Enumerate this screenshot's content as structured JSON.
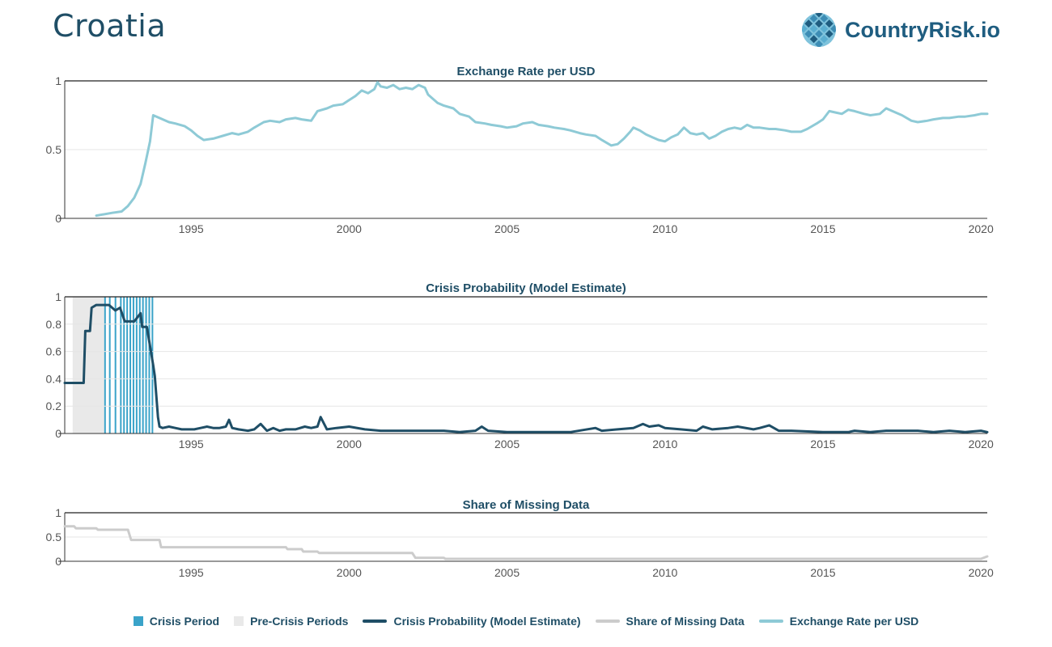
{
  "page": {
    "title": "Croatia"
  },
  "brand": {
    "name": "CountryRisk.io",
    "logo_icon": "globe-grid-icon"
  },
  "colors": {
    "exchange": "#8ecad6",
    "crisis_prob": "#1f4e66",
    "missing": "#cccccc",
    "crisis_period": "#3aa3c9",
    "pre_crisis": "#e9e9e9",
    "title_text": "#1f4e66"
  },
  "legend": [
    {
      "label": "Crisis Period",
      "kind": "box",
      "color": "#3aa3c9"
    },
    {
      "label": "Pre-Crisis Periods",
      "kind": "box",
      "color": "#e9e9e9"
    },
    {
      "label": "Crisis Probability (Model Estimate)",
      "kind": "line",
      "color": "#1f4e66"
    },
    {
      "label": "Share of Missing Data",
      "kind": "line",
      "color": "#cccccc"
    },
    {
      "label": "Exchange Rate per USD",
      "kind": "line",
      "color": "#8ecad6"
    }
  ],
  "chart_data": [
    {
      "type": "line",
      "title": "Exchange Rate per USD",
      "xlim": [
        1991.0,
        2020.2
      ],
      "ylim": [
        0,
        1
      ],
      "yticks": [
        "0",
        "0.5",
        "1"
      ],
      "xticks": [
        "1995",
        "2000",
        "2005",
        "2010",
        "2015",
        "2020"
      ],
      "grid": true,
      "series": [
        {
          "name": "Exchange Rate per USD",
          "x": [
            1992.0,
            1992.5,
            1992.8,
            1993.0,
            1993.2,
            1993.4,
            1993.55,
            1993.7,
            1993.8,
            1994.0,
            1994.3,
            1994.5,
            1994.8,
            1995.0,
            1995.2,
            1995.4,
            1995.7,
            1996.0,
            1996.3,
            1996.5,
            1996.8,
            1997.0,
            1997.3,
            1997.5,
            1997.8,
            1998.0,
            1998.3,
            1998.5,
            1998.8,
            1999.0,
            1999.3,
            1999.5,
            1999.8,
            2000.0,
            2000.2,
            2000.4,
            2000.6,
            2000.8,
            2000.9,
            2001.0,
            2001.2,
            2001.4,
            2001.6,
            2001.8,
            2002.0,
            2002.2,
            2002.4,
            2002.5,
            2002.8,
            2003.0,
            2003.3,
            2003.5,
            2003.8,
            2004.0,
            2004.3,
            2004.5,
            2004.8,
            2005.0,
            2005.3,
            2005.5,
            2005.8,
            2006.0,
            2006.3,
            2006.5,
            2006.8,
            2007.0,
            2007.3,
            2007.5,
            2007.8,
            2008.0,
            2008.3,
            2008.5,
            2008.7,
            2008.9,
            2009.0,
            2009.2,
            2009.4,
            2009.6,
            2009.8,
            2010.0,
            2010.2,
            2010.4,
            2010.6,
            2010.8,
            2011.0,
            2011.2,
            2011.4,
            2011.6,
            2011.8,
            2012.0,
            2012.2,
            2012.4,
            2012.6,
            2012.8,
            2013.0,
            2013.3,
            2013.5,
            2013.8,
            2014.0,
            2014.3,
            2014.5,
            2014.8,
            2015.0,
            2015.2,
            2015.4,
            2015.6,
            2015.8,
            2016.0,
            2016.3,
            2016.5,
            2016.8,
            2017.0,
            2017.3,
            2017.5,
            2017.8,
            2018.0,
            2018.3,
            2018.5,
            2018.8,
            2019.0,
            2019.3,
            2019.5,
            2019.8,
            2020.0,
            2020.2
          ],
          "y": [
            0.02,
            0.04,
            0.05,
            0.09,
            0.15,
            0.25,
            0.4,
            0.56,
            0.75,
            0.73,
            0.7,
            0.69,
            0.67,
            0.64,
            0.6,
            0.57,
            0.58,
            0.6,
            0.62,
            0.61,
            0.63,
            0.66,
            0.7,
            0.71,
            0.7,
            0.72,
            0.73,
            0.72,
            0.71,
            0.78,
            0.8,
            0.82,
            0.83,
            0.86,
            0.89,
            0.93,
            0.91,
            0.94,
            0.99,
            0.96,
            0.95,
            0.97,
            0.94,
            0.95,
            0.94,
            0.97,
            0.95,
            0.9,
            0.84,
            0.82,
            0.8,
            0.76,
            0.74,
            0.7,
            0.69,
            0.68,
            0.67,
            0.66,
            0.67,
            0.69,
            0.7,
            0.68,
            0.67,
            0.66,
            0.65,
            0.64,
            0.62,
            0.61,
            0.6,
            0.57,
            0.53,
            0.54,
            0.58,
            0.63,
            0.66,
            0.64,
            0.61,
            0.59,
            0.57,
            0.56,
            0.59,
            0.61,
            0.66,
            0.62,
            0.61,
            0.62,
            0.58,
            0.6,
            0.63,
            0.65,
            0.66,
            0.65,
            0.68,
            0.66,
            0.66,
            0.65,
            0.65,
            0.64,
            0.63,
            0.63,
            0.65,
            0.69,
            0.72,
            0.78,
            0.77,
            0.76,
            0.79,
            0.78,
            0.76,
            0.75,
            0.76,
            0.8,
            0.77,
            0.75,
            0.71,
            0.7,
            0.71,
            0.72,
            0.73,
            0.73,
            0.74,
            0.74,
            0.75,
            0.76,
            0.76
          ]
        }
      ]
    },
    {
      "type": "line",
      "title": "Crisis Probability (Model Estimate)",
      "xlim": [
        1991.0,
        2020.2
      ],
      "ylim": [
        0,
        1
      ],
      "yticks": [
        "0",
        "0.2",
        "0.4",
        "0.6",
        "0.8",
        "1"
      ],
      "xticks": [
        "1995",
        "2000",
        "2005",
        "2010",
        "2015",
        "2020"
      ],
      "grid": true,
      "pre_crisis_periods": [
        [
          1991.25,
          1992.25
        ]
      ],
      "crisis_periods": [
        [
          1992.25,
          1992.3
        ],
        [
          1992.4,
          1992.45
        ],
        [
          1992.58,
          1992.62
        ],
        [
          1992.75,
          1992.8
        ],
        [
          1992.85,
          1992.9
        ],
        [
          1992.95,
          1993.0
        ],
        [
          1993.05,
          1993.1
        ],
        [
          1993.15,
          1993.2
        ],
        [
          1993.25,
          1993.3
        ],
        [
          1993.35,
          1993.4
        ],
        [
          1993.45,
          1993.5
        ],
        [
          1993.55,
          1993.6
        ],
        [
          1993.65,
          1993.7
        ],
        [
          1993.75,
          1993.8
        ]
      ],
      "series": [
        {
          "name": "Crisis Probability (Model Estimate)",
          "x": [
            1991.0,
            1991.6,
            1991.65,
            1991.8,
            1991.85,
            1992.0,
            1992.1,
            1992.2,
            1992.4,
            1992.6,
            1992.75,
            1992.9,
            1993.0,
            1993.2,
            1993.4,
            1993.45,
            1993.55,
            1993.6,
            1993.8,
            1993.85,
            1993.95,
            1994.0,
            1994.1,
            1994.3,
            1994.5,
            1994.7,
            1994.9,
            1995.1,
            1995.3,
            1995.5,
            1995.7,
            1995.9,
            1996.1,
            1996.2,
            1996.3,
            1996.5,
            1996.8,
            1997.0,
            1997.2,
            1997.4,
            1997.6,
            1997.8,
            1998.0,
            1998.3,
            1998.6,
            1998.8,
            1999.0,
            1999.1,
            1999.3,
            1999.6,
            2000.0,
            2000.5,
            2001.0,
            2001.5,
            2002.0,
            2002.5,
            2003.0,
            2003.5,
            2004.0,
            2004.2,
            2004.4,
            2005.0,
            2006.0,
            2007.0,
            2007.8,
            2008.0,
            2008.5,
            2009.0,
            2009.3,
            2009.5,
            2009.8,
            2010.0,
            2010.5,
            2011.0,
            2011.2,
            2011.5,
            2012.0,
            2012.3,
            2012.8,
            2013.0,
            2013.3,
            2013.6,
            2014.0,
            2015.0,
            2015.8,
            2016.0,
            2016.5,
            2017.0,
            2017.5,
            2018.0,
            2018.5,
            2019.0,
            2019.5,
            2020.0,
            2020.2
          ],
          "y": [
            0.37,
            0.37,
            0.75,
            0.75,
            0.92,
            0.94,
            0.94,
            0.94,
            0.94,
            0.9,
            0.92,
            0.82,
            0.82,
            0.82,
            0.88,
            0.78,
            0.78,
            0.78,
            0.5,
            0.42,
            0.12,
            0.05,
            0.04,
            0.05,
            0.04,
            0.03,
            0.03,
            0.03,
            0.04,
            0.05,
            0.04,
            0.04,
            0.05,
            0.1,
            0.04,
            0.03,
            0.02,
            0.03,
            0.07,
            0.02,
            0.04,
            0.02,
            0.03,
            0.03,
            0.05,
            0.04,
            0.05,
            0.12,
            0.03,
            0.04,
            0.05,
            0.03,
            0.02,
            0.02,
            0.02,
            0.02,
            0.02,
            0.01,
            0.02,
            0.05,
            0.02,
            0.01,
            0.01,
            0.01,
            0.04,
            0.02,
            0.03,
            0.04,
            0.07,
            0.05,
            0.06,
            0.04,
            0.03,
            0.02,
            0.05,
            0.03,
            0.04,
            0.05,
            0.03,
            0.04,
            0.06,
            0.02,
            0.02,
            0.01,
            0.01,
            0.02,
            0.01,
            0.02,
            0.02,
            0.02,
            0.01,
            0.02,
            0.01,
            0.02,
            0.01
          ]
        }
      ]
    },
    {
      "type": "line",
      "title": "Share of Missing Data",
      "xlim": [
        1991.0,
        2020.2
      ],
      "ylim": [
        0,
        1
      ],
      "yticks": [
        "0",
        "0.5",
        "1"
      ],
      "xticks": [
        "1995",
        "2000",
        "2005",
        "2010",
        "2015",
        "2020"
      ],
      "grid": true,
      "series": [
        {
          "name": "Share of Missing Data",
          "x": [
            1991.0,
            1991.3,
            1991.35,
            1992.0,
            1992.05,
            1993.0,
            1993.1,
            1994.0,
            1994.05,
            1998.0,
            1998.05,
            1998.5,
            1998.55,
            1999.0,
            1999.05,
            2002.0,
            2002.1,
            2003.0,
            2003.05,
            2020.0,
            2020.2
          ],
          "y": [
            0.72,
            0.72,
            0.68,
            0.68,
            0.65,
            0.65,
            0.44,
            0.44,
            0.29,
            0.29,
            0.25,
            0.25,
            0.2,
            0.2,
            0.17,
            0.17,
            0.07,
            0.07,
            0.05,
            0.05,
            0.1
          ]
        }
      ]
    }
  ]
}
